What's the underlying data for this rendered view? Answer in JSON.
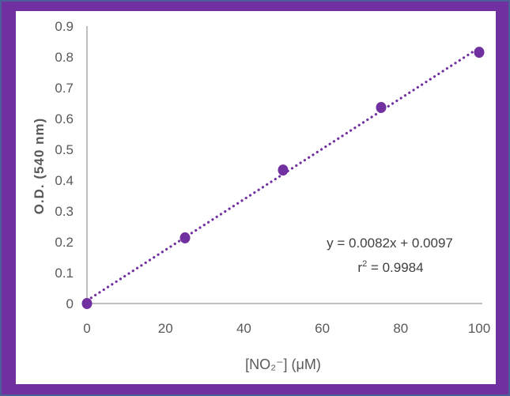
{
  "chart_data": {
    "type": "scatter",
    "title": "",
    "xlabel": "[NO₂⁻] (μM)",
    "ylabel": "O.D. (540 nm)",
    "x": [
      0,
      25,
      50,
      75,
      100
    ],
    "series": [
      {
        "name": "O.D. (540 nm)",
        "values": [
          0.0,
          0.213,
          0.433,
          0.636,
          0.815
        ],
        "marker": "circle",
        "color": "#7030a0"
      }
    ],
    "trendline": {
      "type": "linear",
      "style": "dotted",
      "color": "#7030a0",
      "slope": 0.0082,
      "intercept": 0.0097,
      "equation_label": "y = 0.0082x + 0.0097",
      "r2_label_base": "r",
      "r2_label_sup": "2",
      "r2_label_value": " = 0.9984"
    },
    "xlim": [
      0,
      100
    ],
    "ylim": [
      0,
      0.9
    ],
    "x_ticks": [
      "0",
      "20",
      "40",
      "60",
      "80",
      "100"
    ],
    "y_ticks": [
      "0",
      "0.1",
      "0.2",
      "0.3",
      "0.4",
      "0.5",
      "0.6",
      "0.7",
      "0.8",
      "0.9"
    ],
    "grid": false,
    "legend": "none"
  },
  "colors": {
    "border": "#7030a0",
    "outer_edge": "#4a5f9a",
    "background": "#ffffff",
    "axis": "#bfbfbf",
    "text": "#595959"
  }
}
